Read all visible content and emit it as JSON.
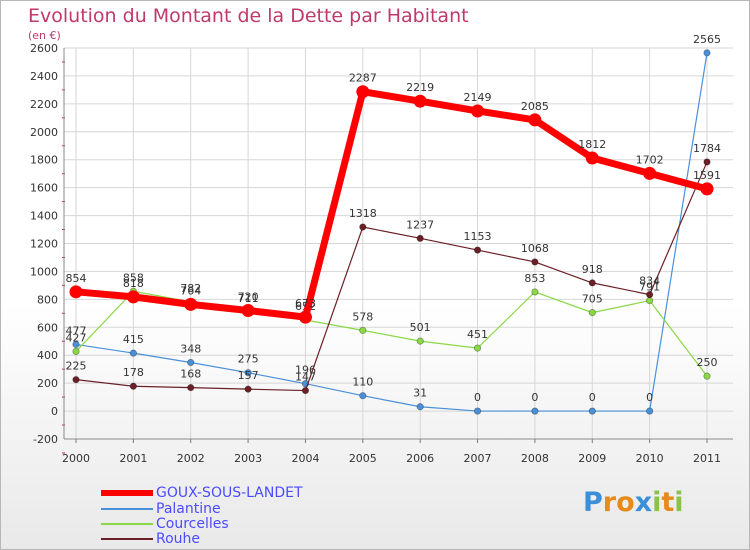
{
  "title": "Evolution du Montant de la Dette par Habitant",
  "unit": "(en €)",
  "logo": {
    "letters": [
      "P",
      "r",
      "o",
      "x",
      "i",
      "t",
      "i"
    ],
    "colors": [
      "#3a8fd8",
      "#e88a1a",
      "#e88a1a",
      "#3a8fd8",
      "#8bc34a",
      "#e88a1a",
      "#8bc34a"
    ]
  },
  "chart_data": {
    "type": "line",
    "x": [
      "2000",
      "2001",
      "2002",
      "2003",
      "2004",
      "2005",
      "2006",
      "2007",
      "2008",
      "2009",
      "2010",
      "2011"
    ],
    "yticks": [
      "-200",
      "0",
      "200",
      "400",
      "600",
      "800",
      "1000",
      "1200",
      "1400",
      "1600",
      "1800",
      "2000",
      "2200",
      "2400",
      "2600"
    ],
    "ylim": [
      -200,
      2600
    ],
    "grid": true,
    "series": [
      {
        "name": "GOUX-SOUS-LANDET",
        "color": "#ff0000",
        "values": [
          854,
          818,
          764,
          720,
          673,
          2287,
          2219,
          2149,
          2085,
          1812,
          1702,
          1591
        ]
      },
      {
        "name": "Palantine",
        "color": "#4a90d9",
        "values": [
          477,
          415,
          348,
          275,
          196,
          110,
          31,
          0,
          0,
          0,
          0,
          2565
        ]
      },
      {
        "name": "Courcelles",
        "color": "#8bd846",
        "values": [
          427,
          858,
          782,
          711,
          652,
          578,
          501,
          451,
          853,
          705,
          791,
          250
        ]
      },
      {
        "name": "Rouhe",
        "color": "#6b1f26",
        "values": [
          225,
          178,
          168,
          157,
          147,
          1318,
          1237,
          1153,
          1068,
          918,
          834,
          1784
        ]
      }
    ]
  }
}
